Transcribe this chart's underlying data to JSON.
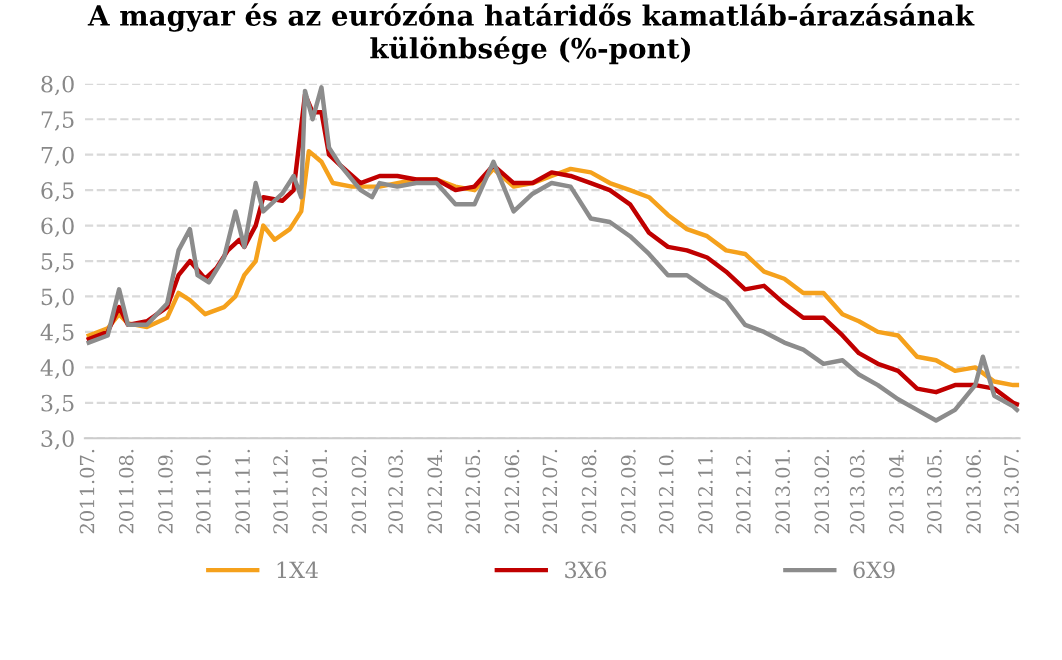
{
  "chart_data": {
    "type": "line",
    "title": "A magyar és az eurózóna határidős kamatláb-árazásának különbsége (%-pont)",
    "ylim": [
      3.0,
      8.0
    ],
    "yticks": [
      {
        "value": 3.0,
        "label": "3,0"
      },
      {
        "value": 3.5,
        "label": "3,5"
      },
      {
        "value": 4.0,
        "label": "4,0"
      },
      {
        "value": 4.5,
        "label": "4,5"
      },
      {
        "value": 5.0,
        "label": "5,0"
      },
      {
        "value": 5.5,
        "label": "5,5"
      },
      {
        "value": 6.0,
        "label": "6,0"
      },
      {
        "value": 6.5,
        "label": "6,5"
      },
      {
        "value": 7.0,
        "label": "7,0"
      },
      {
        "value": 7.5,
        "label": "7,5"
      },
      {
        "value": 8.0,
        "label": "8,0"
      }
    ],
    "xlim": [
      "2011-06-28",
      "2013-07-06"
    ],
    "xticks": [
      {
        "value": "2011-07",
        "label": "2011.07."
      },
      {
        "value": "2011-08",
        "label": "2011.08."
      },
      {
        "value": "2011-09",
        "label": "2011.09."
      },
      {
        "value": "2011-10",
        "label": "2011.10."
      },
      {
        "value": "2011-11",
        "label": "2011.11."
      },
      {
        "value": "2011-12",
        "label": "2011.12."
      },
      {
        "value": "2012-01",
        "label": "2012.01."
      },
      {
        "value": "2012-02",
        "label": "2012.02."
      },
      {
        "value": "2012-03",
        "label": "2012.03."
      },
      {
        "value": "2012-04",
        "label": "2012.04."
      },
      {
        "value": "2012-05",
        "label": "2012.05."
      },
      {
        "value": "2012-06",
        "label": "2012.06."
      },
      {
        "value": "2012-07",
        "label": "2012.07."
      },
      {
        "value": "2012-08",
        "label": "2012.08."
      },
      {
        "value": "2012-09",
        "label": "2012.09."
      },
      {
        "value": "2012-10",
        "label": "2012.10."
      },
      {
        "value": "2012-11",
        "label": "2012.11."
      },
      {
        "value": "2012-12",
        "label": "2012.12."
      },
      {
        "value": "2013-01",
        "label": "2013.01."
      },
      {
        "value": "2013-02",
        "label": "2013.02."
      },
      {
        "value": "2013-03",
        "label": "2013.03."
      },
      {
        "value": "2013-04",
        "label": "2013.04."
      },
      {
        "value": "2013-05",
        "label": "2013.05."
      },
      {
        "value": "2013-06",
        "label": "2013.06."
      },
      {
        "value": "2013-07",
        "label": "2013.07."
      }
    ],
    "grid": "y",
    "legend": "bottom",
    "line_style": "solid",
    "marker": "none",
    "series": [
      {
        "name": "1X4",
        "color": "#f5a11c",
        "x": [
          "2011-07-01",
          "2011-07-16",
          "2011-07-25",
          "2011-08-01",
          "2011-08-16",
          "2011-09-01",
          "2011-09-10",
          "2011-09-19",
          "2011-10-01",
          "2011-10-16",
          "2011-10-25",
          "2011-11-01",
          "2011-11-10",
          "2011-11-16",
          "2011-11-25",
          "2011-12-07",
          "2011-12-16",
          "2011-12-22",
          "2012-01-01",
          "2012-01-10",
          "2012-01-25",
          "2012-02-16",
          "2012-03-01",
          "2012-03-16",
          "2012-04-01",
          "2012-04-16",
          "2012-05-01",
          "2012-05-16",
          "2012-06-01",
          "2012-06-16",
          "2012-07-01",
          "2012-07-16",
          "2012-08-01",
          "2012-08-16",
          "2012-09-01",
          "2012-09-16",
          "2012-10-01",
          "2012-10-16",
          "2012-11-01",
          "2012-11-16",
          "2012-12-01",
          "2012-12-16",
          "2013-01-01",
          "2013-01-16",
          "2013-02-01",
          "2013-02-16",
          "2013-03-01",
          "2013-03-16",
          "2013-04-01",
          "2013-04-16",
          "2013-05-01",
          "2013-05-16",
          "2013-06-01",
          "2013-06-16",
          "2013-07-01",
          "2013-07-04"
        ],
        "values": [
          4.45,
          4.55,
          4.75,
          4.62,
          4.57,
          4.7,
          5.05,
          4.95,
          4.75,
          4.85,
          5.0,
          5.3,
          5.5,
          6.0,
          5.8,
          5.95,
          6.2,
          7.05,
          6.9,
          6.6,
          6.55,
          6.55,
          6.6,
          6.65,
          6.65,
          6.55,
          6.5,
          6.8,
          6.55,
          6.6,
          6.7,
          6.8,
          6.75,
          6.6,
          6.5,
          6.4,
          6.15,
          5.95,
          5.85,
          5.65,
          5.6,
          5.35,
          5.25,
          5.05,
          5.05,
          4.75,
          4.65,
          4.5,
          4.45,
          4.15,
          4.1,
          3.95,
          4.0,
          3.8,
          3.75,
          3.75
        ]
      },
      {
        "name": "3X6",
        "color": "#c00000",
        "x": [
          "2011-07-01",
          "2011-07-16",
          "2011-07-25",
          "2011-08-01",
          "2011-08-16",
          "2011-09-01",
          "2011-09-10",
          "2011-09-19",
          "2011-10-01",
          "2011-10-10",
          "2011-10-19",
          "2011-10-28",
          "2011-11-01",
          "2011-11-10",
          "2011-11-16",
          "2011-12-01",
          "2011-12-10",
          "2011-12-19",
          "2011-12-25",
          "2012-01-01",
          "2012-01-07",
          "2012-01-16",
          "2012-02-01",
          "2012-02-16",
          "2012-03-01",
          "2012-03-16",
          "2012-04-01",
          "2012-04-16",
          "2012-05-01",
          "2012-05-16",
          "2012-06-01",
          "2012-06-16",
          "2012-07-01",
          "2012-07-16",
          "2012-08-01",
          "2012-08-16",
          "2012-09-01",
          "2012-09-16",
          "2012-10-01",
          "2012-10-16",
          "2012-11-01",
          "2012-11-16",
          "2012-12-01",
          "2012-12-16",
          "2013-01-01",
          "2013-01-16",
          "2013-02-01",
          "2013-02-16",
          "2013-03-01",
          "2013-03-16",
          "2013-04-01",
          "2013-04-16",
          "2013-05-01",
          "2013-05-16",
          "2013-06-01",
          "2013-06-16",
          "2013-07-01",
          "2013-07-04"
        ],
        "values": [
          4.4,
          4.5,
          4.85,
          4.6,
          4.65,
          4.85,
          5.3,
          5.5,
          5.25,
          5.4,
          5.65,
          5.8,
          5.7,
          6.0,
          6.4,
          6.35,
          6.5,
          7.85,
          7.6,
          7.6,
          7.0,
          6.85,
          6.6,
          6.7,
          6.7,
          6.65,
          6.65,
          6.5,
          6.55,
          6.85,
          6.6,
          6.6,
          6.75,
          6.7,
          6.6,
          6.5,
          6.3,
          5.9,
          5.7,
          5.65,
          5.55,
          5.35,
          5.1,
          5.15,
          4.9,
          4.7,
          4.7,
          4.45,
          4.2,
          4.05,
          3.95,
          3.7,
          3.65,
          3.75,
          3.75,
          3.7,
          3.5,
          3.48
        ]
      },
      {
        "name": "6X9",
        "color": "#8c8c8c",
        "x": [
          "2011-07-01",
          "2011-07-16",
          "2011-07-25",
          "2011-08-01",
          "2011-08-16",
          "2011-09-01",
          "2011-09-10",
          "2011-09-19",
          "2011-09-25",
          "2011-10-04",
          "2011-10-16",
          "2011-10-25",
          "2011-11-01",
          "2011-11-10",
          "2011-11-16",
          "2011-12-01",
          "2011-12-10",
          "2011-12-16",
          "2011-12-19",
          "2011-12-25",
          "2012-01-01",
          "2012-01-07",
          "2012-01-16",
          "2012-02-01",
          "2012-02-10",
          "2012-02-16",
          "2012-03-01",
          "2012-03-16",
          "2012-04-01",
          "2012-04-16",
          "2012-05-01",
          "2012-05-16",
          "2012-06-01",
          "2012-06-16",
          "2012-07-01",
          "2012-07-16",
          "2012-08-01",
          "2012-08-16",
          "2012-09-01",
          "2012-09-16",
          "2012-10-01",
          "2012-10-16",
          "2012-11-01",
          "2012-11-16",
          "2012-12-01",
          "2012-12-16",
          "2013-01-01",
          "2013-01-16",
          "2013-02-01",
          "2013-02-16",
          "2013-03-01",
          "2013-03-16",
          "2013-04-01",
          "2013-04-16",
          "2013-05-01",
          "2013-05-16",
          "2013-06-01",
          "2013-06-07",
          "2013-06-16",
          "2013-07-01",
          "2013-07-04"
        ],
        "values": [
          4.35,
          4.45,
          5.1,
          4.6,
          4.6,
          4.9,
          5.65,
          5.95,
          5.3,
          5.2,
          5.55,
          6.2,
          5.7,
          6.6,
          6.2,
          6.45,
          6.7,
          6.4,
          7.9,
          7.5,
          7.95,
          7.1,
          6.85,
          6.5,
          6.4,
          6.6,
          6.55,
          6.6,
          6.6,
          6.3,
          6.3,
          6.9,
          6.2,
          6.45,
          6.6,
          6.55,
          6.1,
          6.05,
          5.85,
          5.6,
          5.3,
          5.3,
          5.1,
          4.95,
          4.6,
          4.5,
          4.35,
          4.25,
          4.05,
          4.1,
          3.9,
          3.75,
          3.55,
          3.4,
          3.25,
          3.4,
          3.75,
          4.15,
          3.6,
          3.45,
          3.4
        ]
      }
    ]
  }
}
